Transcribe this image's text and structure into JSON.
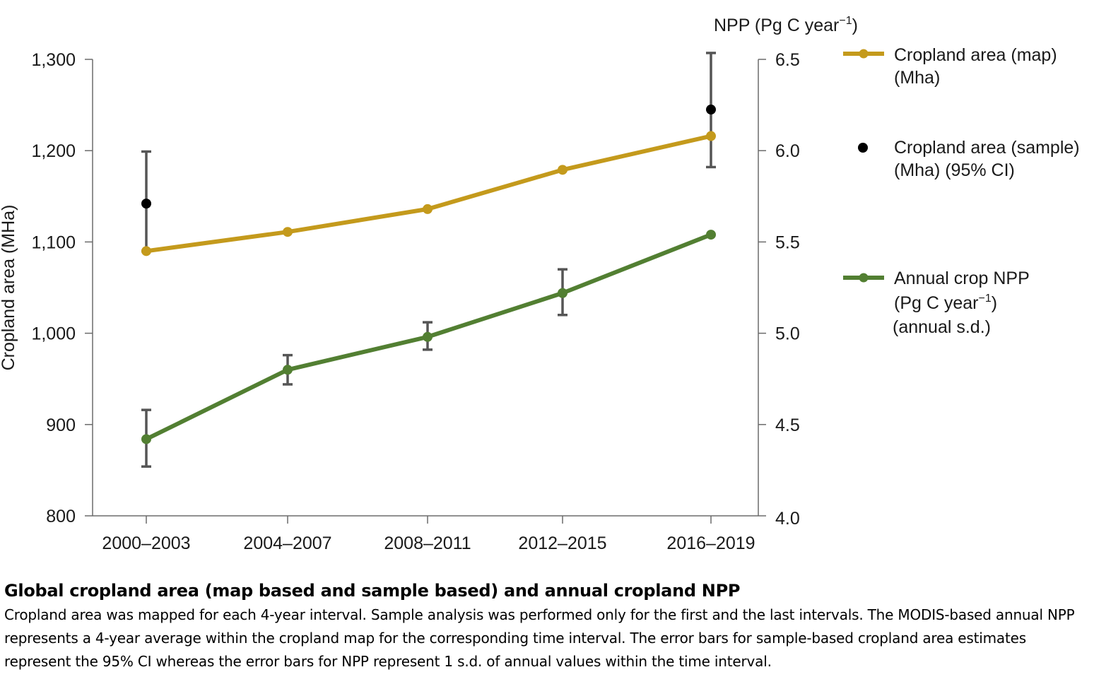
{
  "chart_data": {
    "type": "line",
    "categories": [
      "2000–2003",
      "2004–2007",
      "2008–2011",
      "2012–2015",
      "2016–2019"
    ],
    "left_axis": {
      "label": "Cropland area (MHa)",
      "ylim": [
        800,
        1300
      ],
      "ticks": [
        800,
        900,
        1000,
        1100,
        1200,
        1300
      ],
      "tick_labels": [
        "800",
        "900",
        "1,000",
        "1,100",
        "1,200",
        "1,300"
      ]
    },
    "right_axis": {
      "label_main": "NPP (Pg C year",
      "label_sup": "−1",
      "label_end": ")",
      "ylim": [
        4.0,
        6.5
      ],
      "ticks": [
        4.0,
        4.5,
        5.0,
        5.5,
        6.0,
        6.5
      ],
      "tick_labels": [
        "4.0",
        "4.5",
        "5.0",
        "5.5",
        "6.0",
        "6.5"
      ]
    },
    "series": [
      {
        "key": "map",
        "axis": "left",
        "color": "#c49a1c",
        "values": [
          1090,
          1111,
          1136,
          1179,
          1216
        ],
        "legend_lines": [
          "Cropland area (map)",
          "(Mha)"
        ]
      },
      {
        "key": "sample",
        "axis": "left",
        "color": "#000000",
        "points": [
          {
            "index": 0,
            "value": 1142,
            "ci_low": 1090,
            "ci_high": 1199
          },
          {
            "index": 4,
            "value": 1245,
            "ci_low": 1182,
            "ci_high": 1307
          }
        ],
        "legend_lines": [
          "Cropland area (sample)",
          "(Mha) (95% CI)"
        ]
      },
      {
        "key": "npp",
        "axis": "right",
        "color": "#527f32",
        "values": [
          4.42,
          4.8,
          4.98,
          5.22,
          5.54
        ],
        "sd_low": [
          4.27,
          4.72,
          4.91,
          5.1,
          5.54
        ],
        "sd_high": [
          4.58,
          4.88,
          5.06,
          5.35,
          5.54
        ],
        "legend_lines": [
          "Annual crop NPP",
          "(Pg C year",
          "(annual s.d.)"
        ],
        "legend_sup": "−1",
        "legend_close": ")"
      }
    ]
  },
  "caption": {
    "title": "Global cropland area (map based and sample based) and annual cropland NPP",
    "body": "Cropland area was mapped for each 4-year interval. Sample analysis was performed only for the first and the last intervals. The MODIS-based annual NPP represents a 4-year average within the cropland map for the corresponding time interval. The error bars for sample-based cropland area estimates represent the 95% CI whereas the error bars for NPP represent 1 s.d. of annual values within the time interval."
  }
}
